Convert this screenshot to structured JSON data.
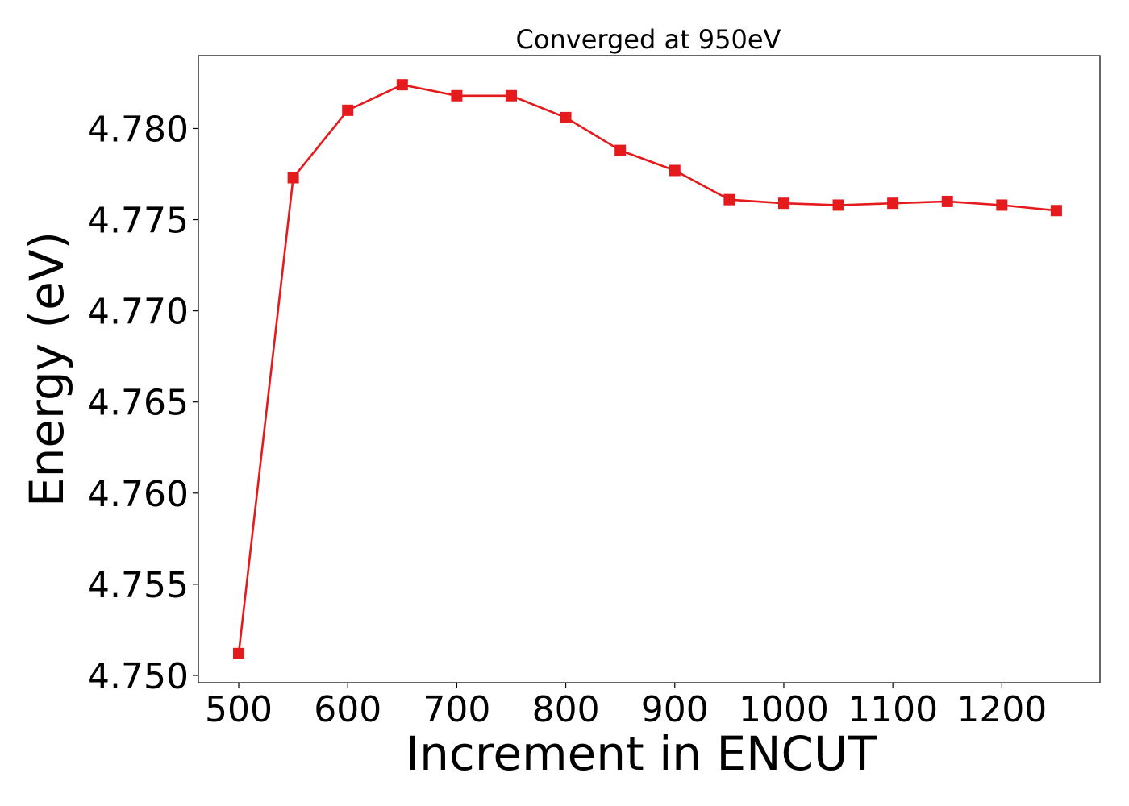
{
  "chart_data": {
    "type": "line",
    "title": "Converged at 950eV",
    "xlabel": "Increment in ENCUT",
    "ylabel": "Energy (eV)",
    "xlim": [
      463,
      1290
    ],
    "ylim": [
      4.7496,
      4.784
    ],
    "xticks": [
      500,
      600,
      700,
      800,
      900,
      1000,
      1100,
      1200
    ],
    "yticks": [
      4.75,
      4.755,
      4.76,
      4.765,
      4.77,
      4.775,
      4.78
    ],
    "ytick_labels": [
      "4.750",
      "4.755",
      "4.760",
      "4.765",
      "4.770",
      "4.775",
      "4.780"
    ],
    "grid": false,
    "legend": "none",
    "series": [
      {
        "color": "#e41a1c",
        "marker": "square",
        "x": [
          500,
          550,
          600,
          650,
          700,
          750,
          800,
          850,
          900,
          950,
          1000,
          1050,
          1100,
          1150,
          1200,
          1250
        ],
        "y": [
          4.7512,
          4.7773,
          4.781,
          4.7824,
          4.7818,
          4.7818,
          4.7806,
          4.7788,
          4.7777,
          4.7761,
          4.7759,
          4.7758,
          4.7759,
          4.776,
          4.7758,
          4.7755
        ]
      }
    ]
  }
}
